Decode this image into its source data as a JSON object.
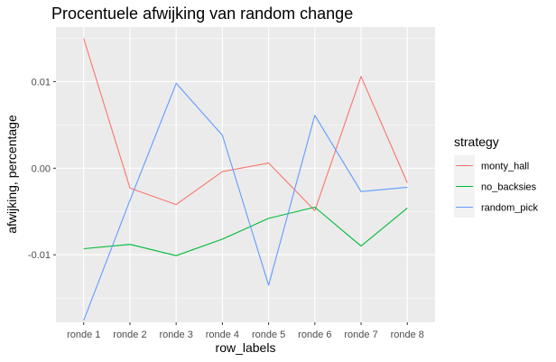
{
  "chart_data": {
    "type": "line",
    "title": "Procentuele afwijking van random change",
    "xlabel": "row_labels",
    "ylabel": "afwijking, percentage",
    "categories": [
      "ronde 1",
      "ronde 2",
      "ronde 3",
      "ronde 4",
      "ronde 5",
      "ronde 6",
      "ronde 7",
      "ronde 8"
    ],
    "ylim": [
      -0.0178,
      0.0163
    ],
    "yticks": [
      0.01,
      0.0,
      -0.01
    ],
    "ytick_labels": [
      "0.01",
      "0.00",
      "-0.01"
    ],
    "grid": true,
    "legend": {
      "title": "strategy",
      "position": "right"
    },
    "series": [
      {
        "name": "monty_hall",
        "color": "#F8766D",
        "values": [
          0.015,
          -0.0023,
          -0.0042,
          -0.0004,
          0.0006,
          -0.0049,
          0.0106,
          -0.0017
        ]
      },
      {
        "name": "no_backsies",
        "color": "#00BA38",
        "values": [
          -0.0093,
          -0.0088,
          -0.0101,
          -0.0082,
          -0.0058,
          -0.0045,
          -0.009,
          -0.0046
        ]
      },
      {
        "name": "random_pick",
        "color": "#619CFF",
        "values": [
          -0.0176,
          -0.0037,
          0.0098,
          0.0038,
          -0.0135,
          0.0061,
          -0.0027,
          -0.0022
        ]
      }
    ]
  }
}
